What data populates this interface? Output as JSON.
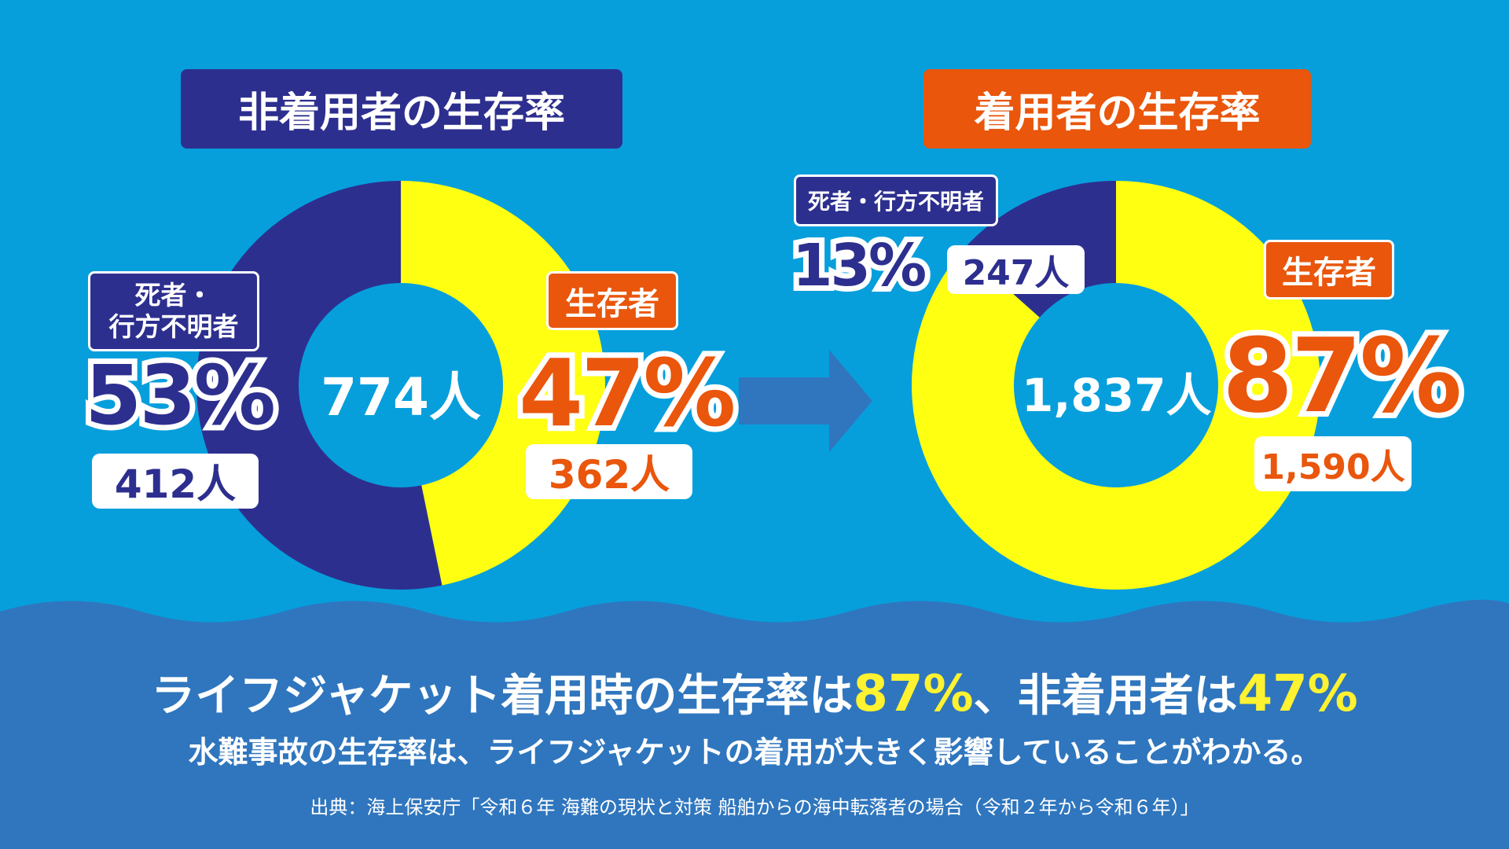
{
  "colors": {
    "background": "#069fdc",
    "navy": "#2d2f8f",
    "orange": "#e9560c",
    "yellow": "#ffff12",
    "wave": "#2f76be"
  },
  "left": {
    "title": "非着用者の生存率",
    "center_total": "774人",
    "dead_label": {
      "line1": "死者・",
      "line2": "行方不明者"
    },
    "dead_pct": "53%",
    "dead_count": "412人",
    "survivor_label": "生存者",
    "survivor_pct": "47%",
    "survivor_count": "362人"
  },
  "right": {
    "title": "着用者の生存率",
    "center_total": "1,837人",
    "dead_label": "死者・行方不明者",
    "dead_pct": "13%",
    "dead_count": "247人",
    "survivor_label": "生存者",
    "survivor_pct": "87%",
    "survivor_count": "1,590人"
  },
  "footer": {
    "headline_a": "ライフジャケット着用時の生存率は",
    "headline_pct1": "87%",
    "headline_b": "、非着用者は",
    "headline_pct2": "47%",
    "subline": "水難事故の生存率は、ライフジャケットの着用が大きく影響していることがわかる。",
    "source": "出典：海上保安庁「令和６年 海難の現状と対策 船舶からの海中転落者の場合（令和２年から令和６年）」"
  },
  "chart_data": [
    {
      "type": "pie",
      "title": "非着用者の生存率",
      "total": 774,
      "series": [
        {
          "name": "生存者",
          "value": 362,
          "percent": 47,
          "color": "#ffff12"
        },
        {
          "name": "死者・行方不明者",
          "value": 412,
          "percent": 53,
          "color": "#2d2f8f"
        }
      ]
    },
    {
      "type": "pie",
      "title": "着用者の生存率",
      "total": 1837,
      "series": [
        {
          "name": "生存者",
          "value": 1590,
          "percent": 87,
          "color": "#ffff12"
        },
        {
          "name": "死者・行方不明者",
          "value": 247,
          "percent": 13,
          "color": "#2d2f8f"
        }
      ]
    }
  ]
}
